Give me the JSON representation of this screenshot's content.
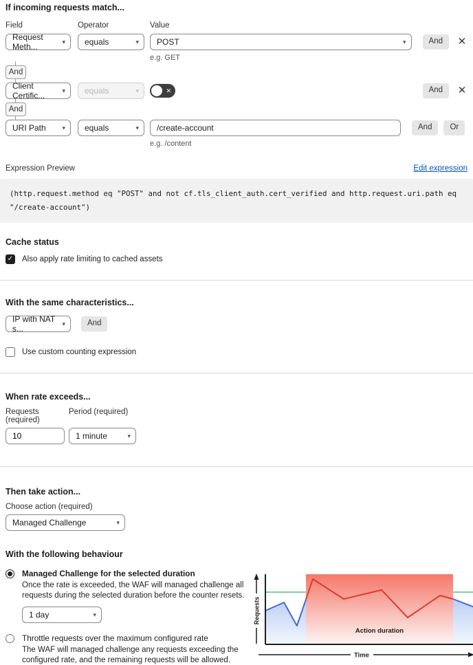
{
  "icons": {
    "caret": "▾",
    "close": "✕",
    "check": "✓",
    "toggle_off": "✕"
  },
  "colors": {
    "link": "#0051c3",
    "chip_bg": "#e5e5e5",
    "toggle_bg": "#3d3d3d"
  },
  "match": {
    "title": "If incoming requests match...",
    "field_label": "Field",
    "operator_label": "Operator",
    "value_label": "Value",
    "connector_label": "And",
    "and_label": "And",
    "or_label": "Or",
    "rows": [
      {
        "field": "Request Meth...",
        "operator": "equals",
        "value": "POST",
        "hint": "e.g. GET"
      },
      {
        "field": "Client Certific...",
        "operator": "equals"
      },
      {
        "field": "URI Path",
        "operator": "equals",
        "value": "/create-account",
        "hint": "e.g. /content"
      }
    ]
  },
  "expression": {
    "label": "Expression Preview",
    "edit_link": "Edit expression",
    "code": "(http.request.method eq \"POST\" and not cf.tls_client_auth.cert_verified and http.request.uri.path eq \"/create-account\")"
  },
  "cache": {
    "title": "Cache status",
    "checkbox": "Also apply rate limiting to cached assets"
  },
  "characteristics": {
    "title": "With the same characteristics...",
    "select_value": "IP with NAT s...",
    "and_label": "And",
    "checkbox": "Use custom counting expression"
  },
  "rate": {
    "title": "When rate exceeds...",
    "requests_label": "Requests (required)",
    "period_label": "Period (required)",
    "requests_value": "10",
    "period_value": "1 minute"
  },
  "action": {
    "title": "Then take action...",
    "label": "Choose action (required)",
    "value": "Managed Challenge"
  },
  "behaviour": {
    "title": "With the following behaviour",
    "option1": {
      "label": "Managed Challenge for the selected duration",
      "description": "Once the rate is exceeded, the WAF will managed challenge all requests during the selected duration before the counter resets.",
      "duration": "1 day"
    },
    "option2": {
      "label": "Throttle requests over the maximum configured rate",
      "description": "The WAF will managed challenge any requests exceeding the configured rate, and the remaining requests will be allowed."
    }
  },
  "chart_data": {
    "type": "line",
    "title": "",
    "xlabel": "Time",
    "ylabel": "Requests",
    "annotation": "Action duration",
    "threshold": {
      "y": 0.255,
      "color": "#55bd80"
    },
    "action_region": {
      "x0": 0.194,
      "x1": 0.898,
      "color_top": "#f5786a",
      "color_bottom": "#fdf5f4"
    },
    "area_fill": {
      "top": "#a3bdee",
      "bottom": "#f2f7fe"
    },
    "series": [
      {
        "name": "requests-before-action",
        "color": "#4468d8",
        "points": [
          [
            0,
            0.52
          ],
          [
            0.089,
            0.402
          ],
          [
            0.151,
            0.735
          ],
          [
            0.194,
            0.359
          ]
        ]
      },
      {
        "name": "requests-during-action",
        "color": "#e0392e",
        "points": [
          [
            0.194,
            0.359
          ],
          [
            0.227,
            0.069
          ],
          [
            0.375,
            0.353
          ],
          [
            0.556,
            0.225
          ],
          [
            0.681,
            0.618
          ],
          [
            0.836,
            0.304
          ],
          [
            0.898,
            0.353
          ]
        ]
      },
      {
        "name": "requests-after-action",
        "color": "#4468d8",
        "points": [
          [
            0.898,
            0.353
          ],
          [
            1,
            0.47
          ]
        ]
      }
    ]
  }
}
